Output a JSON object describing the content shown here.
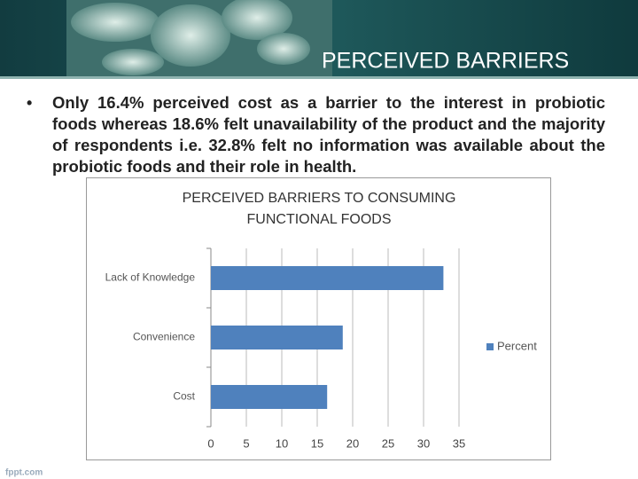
{
  "title": "PERCEIVED BARRIERS",
  "bullet": "Only 16.4% perceived cost as a barrier to the interest in probiotic foods whereas 18.6% felt unavailability of the product and the majority of respondents i.e. 32.8% felt no information was available about the probiotic foods and their role in health.",
  "footer": "fppt.com",
  "chart_data": {
    "type": "barh",
    "title": "PERCEIVED BARRIERS TO CONSUMING FUNCTIONAL FOODS",
    "categories": [
      "Cost",
      "Convenience",
      "Lack of Knowledge"
    ],
    "series": [
      {
        "name": "Percent",
        "color": "#4f81bd",
        "values": [
          16.4,
          18.6,
          32.8
        ]
      }
    ],
    "xlim": [
      0,
      35
    ],
    "xticks": [
      0,
      5,
      10,
      15,
      20,
      25,
      30,
      35
    ],
    "grid": true,
    "legend": "right"
  }
}
